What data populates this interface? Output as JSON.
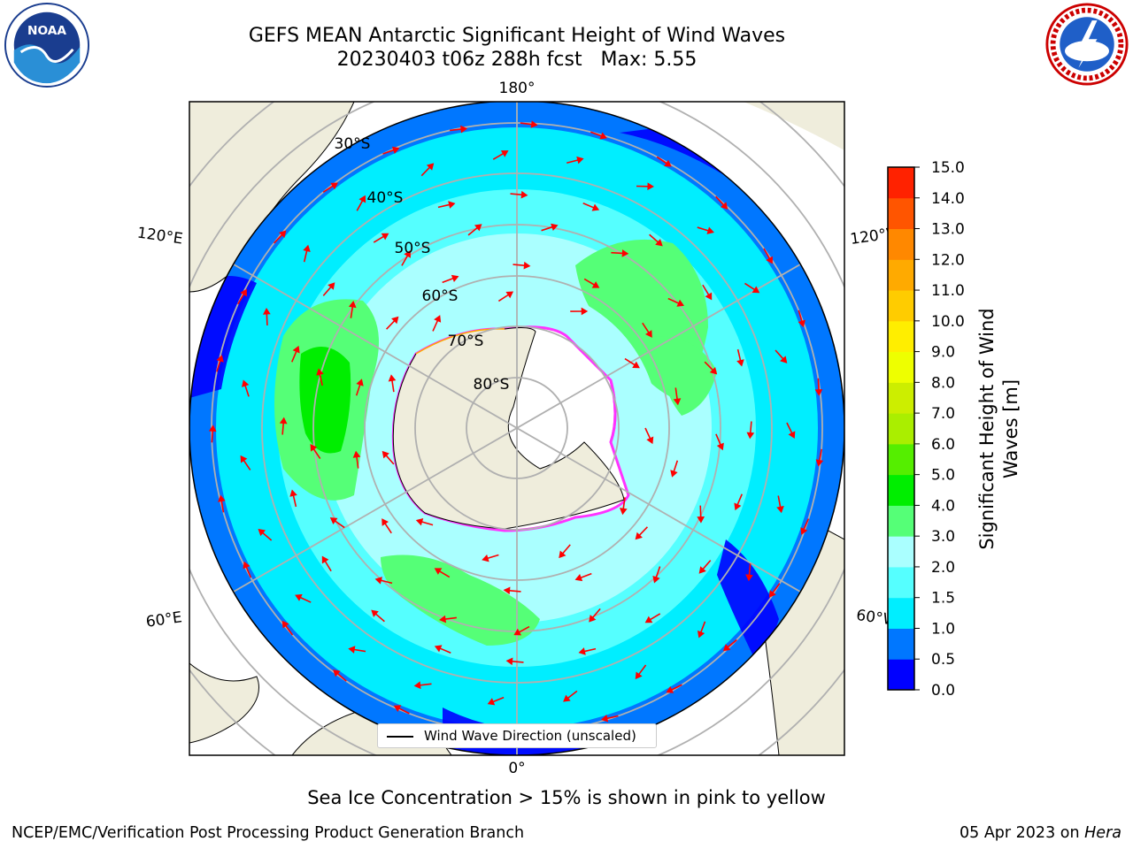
{
  "header": {
    "title_line1": "GEFS MEAN Antarctic Significant Height of Wind Waves",
    "title_line2": "20230403 t06z 288h fcst   Max: 5.55"
  },
  "logos": {
    "left": {
      "name": "noaa-logo",
      "text": "NOAA",
      "ring_text": "NATIONAL OCEANIC AND ATMOSPHERIC ADMINISTRATION · U.S. DEPARTMENT OF COMMERCE"
    },
    "right": {
      "name": "national-weather-service-logo",
      "ring_text": "NATIONAL WEATHER SERVICE"
    }
  },
  "map": {
    "projection": "south-polar-stereographic",
    "longitude_labels": {
      "top": "180°",
      "bottom": "0°",
      "left_upper": "120°E",
      "left_lower": "60°E",
      "right_upper": "120°W",
      "right_lower": "60°W"
    },
    "latitude_labels": [
      "30°S",
      "40°S",
      "50°S",
      "60°S",
      "70°S",
      "80°S"
    ],
    "colors": {
      "land": "#efeddc",
      "ice_edge": [
        "#ff33ff",
        "#ffaa00"
      ],
      "arrows": "#ff0000",
      "graticule": "#b0b0b0",
      "antarctic_ice_shelf": "#ffffff"
    }
  },
  "legend": {
    "label": "Wind Wave Direction (unscaled)"
  },
  "colorbar": {
    "title": "Significant Height of Wind Waves [m]",
    "ticks": [
      "15.0",
      "14.0",
      "13.0",
      "12.0",
      "11.0",
      "10.0",
      "9.0",
      "8.0",
      "7.0",
      "6.0",
      "5.0",
      "4.0",
      "3.0",
      "2.0",
      "1.5",
      "1.0",
      "0.5",
      "0.0"
    ],
    "levels": [
      0.0,
      0.5,
      1.0,
      1.5,
      2.0,
      3.0,
      4.0,
      5.0,
      6.0,
      7.0,
      8.0,
      9.0,
      10.0,
      11.0,
      12.0,
      13.0,
      14.0,
      15.0
    ],
    "colors": [
      "#0000ff",
      "#0077ff",
      "#00eeff",
      "#55ffff",
      "#aaffff",
      "#55ff77",
      "#00ee00",
      "#55ee00",
      "#aaee00",
      "#ccee00",
      "#eeff00",
      "#ffee00",
      "#ffcc00",
      "#ffaa00",
      "#ff8800",
      "#ff5500",
      "#ff2200"
    ]
  },
  "note": "Sea Ice Concentration > 15% is shown in pink to yellow",
  "footer": {
    "left": "NCEP/EMC/Verification Post Processing Product Generation Branch",
    "date": "05 Apr 2023 on ",
    "machine": "Hera"
  }
}
